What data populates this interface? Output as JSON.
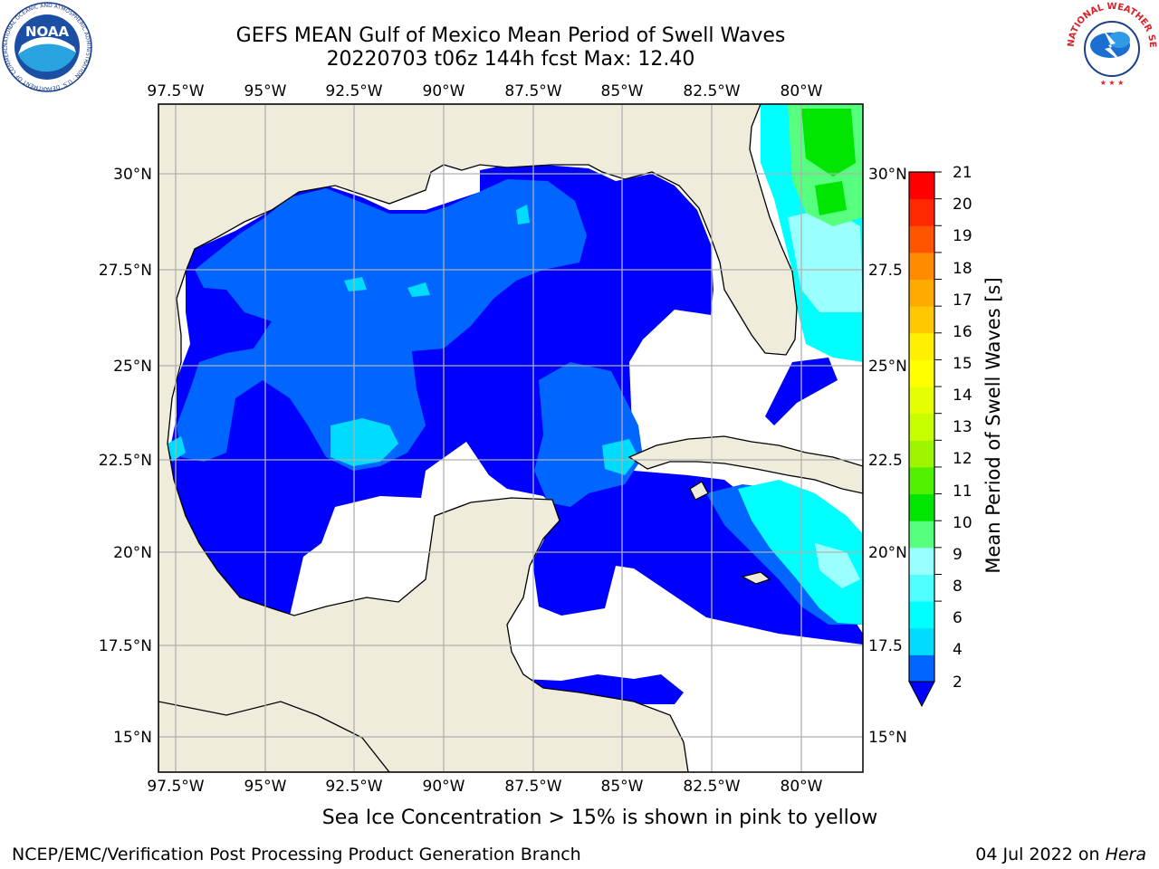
{
  "title": {
    "line1": "GEFS MEAN Gulf of Mexico Mean Period of Swell Waves",
    "line2": "20220703 t06z 144h fcst   Max: 12.40"
  },
  "logos": {
    "left": "noaa-logo",
    "right": "nws-logo",
    "noaa_text": "NOAA",
    "noaa_ring_text": "NATIONAL OCEANIC AND ATMOSPHERIC ADMINISTRATION · U.S. DEPARTMENT OF COMMERCE",
    "nws_ring_text": "NATIONAL WEATHER SERVICE"
  },
  "map": {
    "lon_labels": [
      "97.5°W",
      "95°W",
      "92.5°W",
      "90°W",
      "87.5°W",
      "85°W",
      "82.5°W",
      "80°W"
    ],
    "lat_labels": [
      "30°N",
      "27.5°N",
      "25°N",
      "22.5°N",
      "20°N",
      "17.5°N",
      "15°N"
    ],
    "lat_labels_right": [
      "30°N",
      "27.5",
      "25°N",
      "22.5",
      "20°N",
      "17.5",
      "15°N"
    ],
    "lon_range": [
      -98,
      -79
    ],
    "lat_range": [
      14,
      31.5
    ],
    "colors": {
      "land": "#efecdc",
      "ocean_no_data": "#ffffff",
      "grid": "#b0b0b0"
    }
  },
  "colorbar": {
    "label": "Mean Period of Swell Waves [s]",
    "ticks": [
      "21",
      "20",
      "19",
      "18",
      "17",
      "16",
      "15",
      "14",
      "13",
      "12",
      "11",
      "10",
      "9",
      "8",
      "6",
      "4",
      "2"
    ],
    "colors_bottom_to_top": [
      "#0066ff",
      "#00dcff",
      "#00ffff",
      "#50ffff",
      "#9affff",
      "#56ff7e",
      "#00e600",
      "#50f000",
      "#9ef500",
      "#c8ff00",
      "#e6ff00",
      "#ffff00",
      "#fff000",
      "#ffc800",
      "#ffaa00",
      "#ff8c00",
      "#ff5500",
      "#ff2800",
      "#ff0000"
    ],
    "extend_color": "#0000ff"
  },
  "footer": {
    "ice_note": "Sea Ice Concentration > 15% is shown in pink to yellow",
    "credit": "NCEP/EMC/Verification Post Processing Product Generation Branch",
    "date": "04 Jul 2022 on",
    "machine": "Hera"
  }
}
